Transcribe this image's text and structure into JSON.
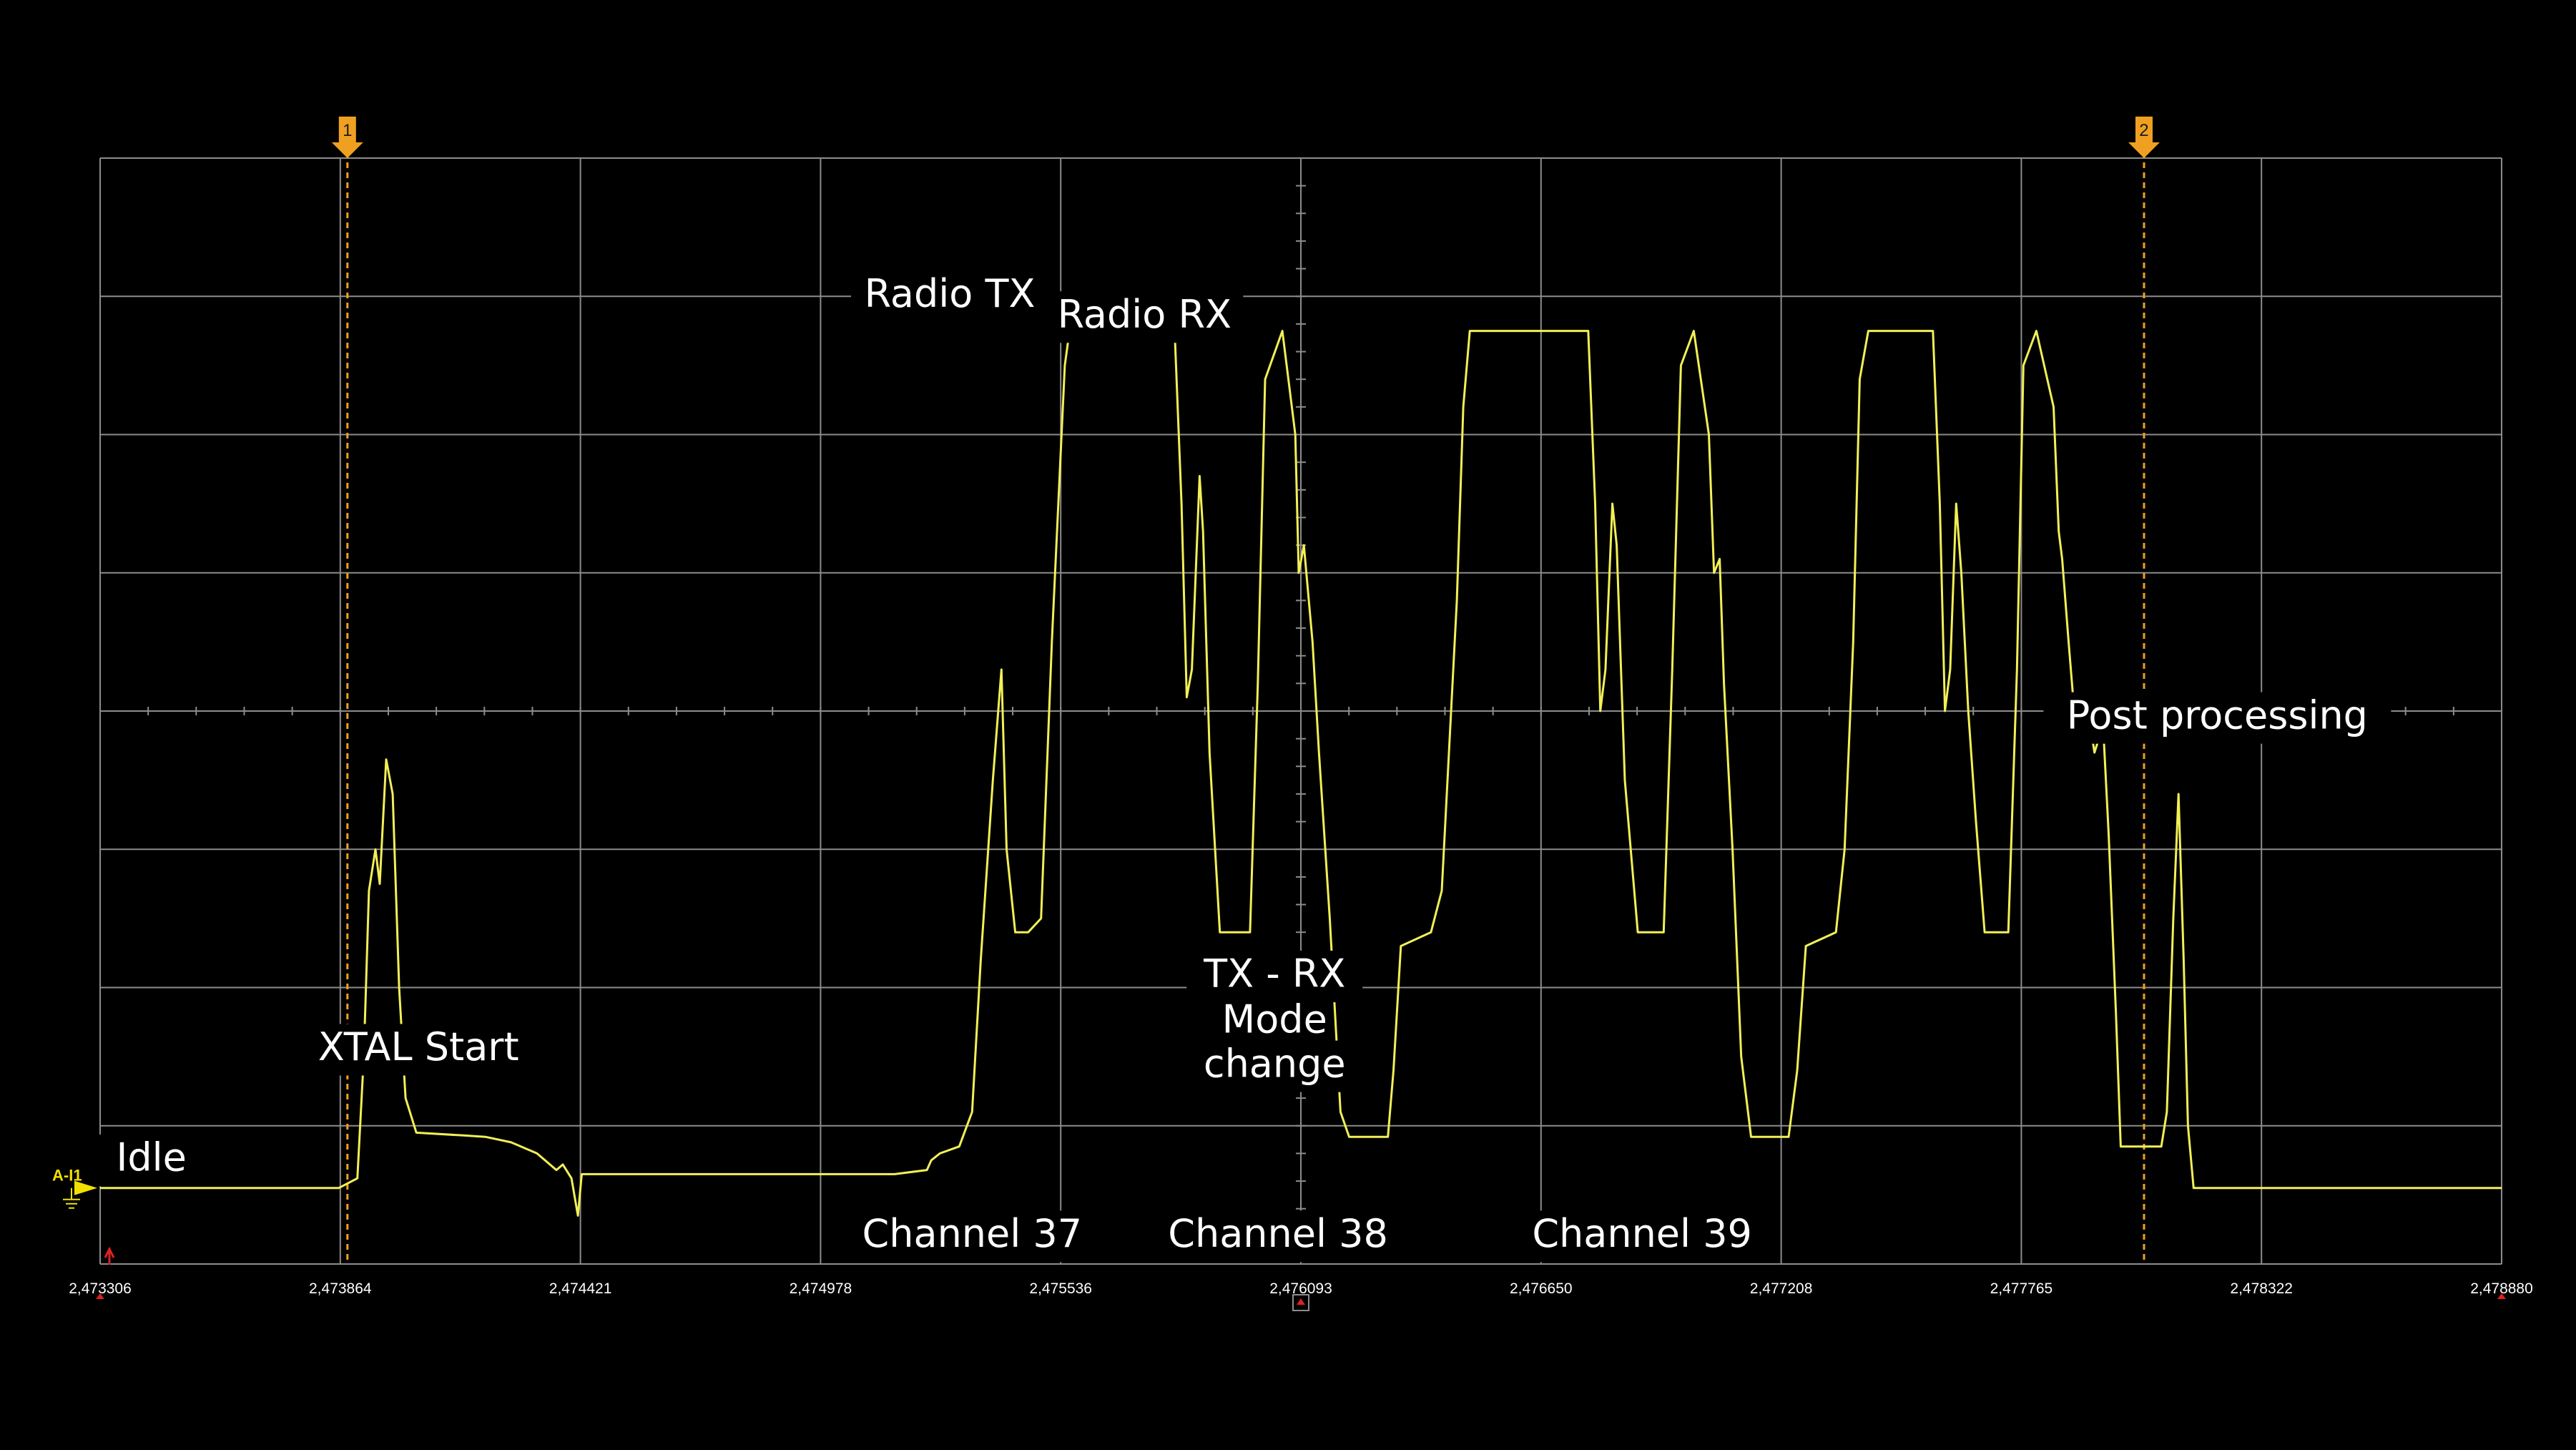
{
  "colors": {
    "background": "#000000",
    "grid": "#8c8c8c",
    "trace": "#f2ef57",
    "marker": "#f0a020",
    "text": "#ffffff",
    "channel_marker": "#f2e100",
    "trigger_marker": "#e02020"
  },
  "chart_data": {
    "type": "line",
    "title": "",
    "xlabel": "",
    "ylabel": "",
    "grid": true,
    "grid_divisions": {
      "x": 10,
      "y": 8
    },
    "xlim": [
      2473306,
      2478880
    ],
    "ylim": [
      0,
      8
    ],
    "x_tick_labels": [
      "2,473306",
      "2,473864",
      "2,474421",
      "2,474978",
      "2,475536",
      "2,476093",
      "2,476650",
      "2,477208",
      "2,477765",
      "2,478322",
      "2,478880"
    ],
    "channel_label": "A-I1",
    "channel_level": 0.55,
    "markers": [
      {
        "label": "1",
        "x": 2473880
      },
      {
        "label": "2",
        "x": 2478050
      }
    ],
    "series": [
      {
        "points": [
          [
            2473306,
            0.55
          ],
          [
            2473860,
            0.55
          ],
          [
            2473903,
            0.62
          ],
          [
            2473918,
            1.5
          ],
          [
            2473930,
            2.7
          ],
          [
            2473945,
            3.0
          ],
          [
            2473955,
            2.75
          ],
          [
            2473970,
            3.65
          ],
          [
            2473985,
            3.4
          ],
          [
            2474000,
            2.0
          ],
          [
            2474015,
            1.2
          ],
          [
            2474040,
            0.95
          ],
          [
            2474150,
            0.93
          ],
          [
            2474200,
            0.92
          ],
          [
            2474260,
            0.88
          ],
          [
            2474320,
            0.8
          ],
          [
            2474365,
            0.68
          ],
          [
            2474380,
            0.72
          ],
          [
            2474400,
            0.62
          ],
          [
            2474415,
            0.35
          ],
          [
            2474423,
            0.62
          ],
          [
            2474424,
            0.65
          ],
          [
            2475150,
            0.65
          ],
          [
            2475225,
            0.68
          ],
          [
            2475235,
            0.75
          ],
          [
            2475255,
            0.8
          ],
          [
            2475300,
            0.85
          ],
          [
            2475330,
            1.1
          ],
          [
            2475350,
            2.2
          ],
          [
            2475378,
            3.5
          ],
          [
            2475398,
            4.3
          ],
          [
            2475410,
            3.0
          ],
          [
            2475430,
            2.4
          ],
          [
            2475460,
            2.4
          ],
          [
            2475490,
            2.5
          ],
          [
            2475515,
            4.5
          ],
          [
            2475545,
            6.5
          ],
          [
            2475556,
            6.75
          ],
          [
            2475800,
            6.75
          ],
          [
            2475816,
            5.5
          ],
          [
            2475828,
            4.1
          ],
          [
            2475840,
            4.3
          ],
          [
            2475858,
            5.7
          ],
          [
            2475866,
            5.3
          ],
          [
            2475881,
            3.7
          ],
          [
            2475905,
            2.4
          ],
          [
            2475975,
            2.4
          ],
          [
            2475993,
            4.2
          ],
          [
            2476010,
            6.4
          ],
          [
            2476050,
            6.75
          ],
          [
            2476080,
            6.0
          ],
          [
            2476088,
            5.0
          ],
          [
            2476100,
            5.2
          ],
          [
            2476120,
            4.5
          ],
          [
            2476135,
            3.7
          ],
          [
            2476160,
            2.5
          ],
          [
            2476185,
            1.1
          ],
          [
            2476205,
            0.92
          ],
          [
            2476295,
            0.92
          ],
          [
            2476308,
            1.4
          ],
          [
            2476325,
            2.3
          ],
          [
            2476395,
            2.4
          ],
          [
            2476420,
            2.7
          ],
          [
            2476455,
            4.8
          ],
          [
            2476470,
            6.2
          ],
          [
            2476485,
            6.75
          ],
          [
            2476760,
            6.75
          ],
          [
            2476776,
            5.5
          ],
          [
            2476788,
            4.0
          ],
          [
            2476800,
            4.3
          ],
          [
            2476816,
            5.5
          ],
          [
            2476826,
            5.2
          ],
          [
            2476845,
            3.5
          ],
          [
            2476875,
            2.4
          ],
          [
            2476935,
            2.4
          ],
          [
            2476955,
            4.3
          ],
          [
            2476975,
            6.5
          ],
          [
            2477005,
            6.75
          ],
          [
            2477040,
            6.0
          ],
          [
            2477052,
            5.0
          ],
          [
            2477065,
            5.1
          ],
          [
            2477075,
            4.2
          ],
          [
            2477095,
            3.0
          ],
          [
            2477115,
            1.5
          ],
          [
            2477138,
            0.92
          ],
          [
            2477225,
            0.92
          ],
          [
            2477245,
            1.4
          ],
          [
            2477265,
            2.3
          ],
          [
            2477335,
            2.4
          ],
          [
            2477355,
            3.0
          ],
          [
            2477375,
            4.5
          ],
          [
            2477390,
            6.4
          ],
          [
            2477410,
            6.75
          ],
          [
            2477560,
            6.75
          ],
          [
            2477576,
            5.5
          ],
          [
            2477588,
            4.0
          ],
          [
            2477600,
            4.3
          ],
          [
            2477614,
            5.5
          ],
          [
            2477626,
            5.0
          ],
          [
            2477642,
            4.0
          ],
          [
            2477660,
            3.2
          ],
          [
            2477680,
            2.4
          ],
          [
            2477735,
            2.4
          ],
          [
            2477755,
            4.3
          ],
          [
            2477770,
            6.5
          ],
          [
            2477800,
            6.75
          ],
          [
            2477840,
            6.2
          ],
          [
            2477852,
            5.3
          ],
          [
            2477860,
            5.1
          ],
          [
            2477875,
            4.5
          ],
          [
            2477888,
            4.0
          ],
          [
            2477905,
            3.8
          ],
          [
            2477920,
            4.0
          ],
          [
            2477935,
            3.7
          ],
          [
            2477955,
            3.9
          ],
          [
            2477968,
            3.1
          ],
          [
            2477985,
            1.8
          ],
          [
            2477996,
            0.85
          ],
          [
            2478090,
            0.85
          ],
          [
            2478103,
            1.1
          ],
          [
            2478118,
            2.5
          ],
          [
            2478130,
            3.4
          ],
          [
            2478142,
            2.2
          ],
          [
            2478152,
            1.0
          ],
          [
            2478165,
            0.55
          ],
          [
            2478880,
            0.55
          ]
        ]
      }
    ],
    "annotations": [
      {
        "text": "Idle",
        "x": 2473425,
        "y": 0.75
      },
      {
        "text": "XTAL Start",
        "x": 2474045,
        "y": 1.55
      },
      {
        "text": "Radio TX",
        "x": 2475278,
        "y": 7.0
      },
      {
        "text": "Radio RX",
        "x": 2475730,
        "y": 6.85
      },
      {
        "text": "TX - RX",
        "x": 2476032,
        "y": 2.08
      },
      {
        "text": "Mode",
        "x": 2476032,
        "y": 1.75
      },
      {
        "text": "change",
        "x": 2476032,
        "y": 1.43
      },
      {
        "text": "Channel 37",
        "x": 2475330,
        "y": 0.2
      },
      {
        "text": "Channel 38",
        "x": 2476040,
        "y": 0.2
      },
      {
        "text": "Channel 39",
        "x": 2476885,
        "y": 0.2
      },
      {
        "text": "Post processing",
        "x": 2478220,
        "y": 3.95
      }
    ]
  }
}
